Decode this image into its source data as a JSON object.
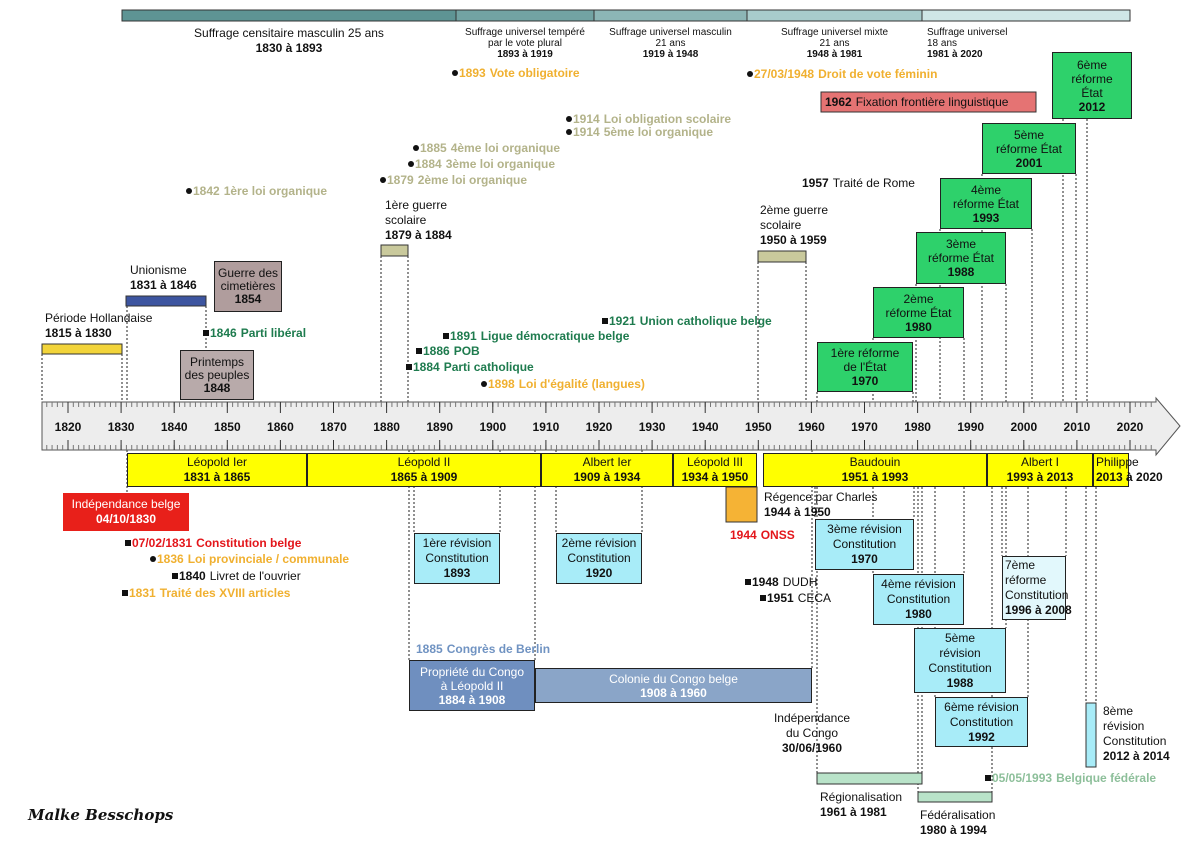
{
  "suffrage": [
    {
      "lines": [
        "Suffrage censitaire masculin 25 ans"
      ],
      "date": "1830 à 1893"
    },
    {
      "lines": [
        "Suffrage universel tempéré",
        "par le vote plural"
      ],
      "date": "1893 à 1919"
    },
    {
      "lines": [
        "Suffrage universel masculin",
        "21 ans"
      ],
      "date": "1919 à 1948"
    },
    {
      "lines": [
        "Suffrage universel mixte",
        "21 ans"
      ],
      "date": "1948 à 1981"
    },
    {
      "lines": [
        "Suffrage universel",
        "18 ans"
      ],
      "date": "1981 à 2020"
    }
  ],
  "events": [
    {
      "date": "1893",
      "text": "Vote obligatoire"
    },
    {
      "date": "27/03/1948",
      "text": "Droit de vote féminin"
    },
    {
      "date": "1962",
      "text": "Fixation frontière linguistique"
    },
    {
      "date": "1914",
      "text": "Loi obligation scolaire"
    },
    {
      "date": "1914",
      "text": "5ème loi organique"
    },
    {
      "date": "1885",
      "text": "4ème loi organique"
    },
    {
      "date": "1884",
      "text": "3ème loi organique"
    },
    {
      "date": "1879",
      "text": "2ème loi organique"
    },
    {
      "date": "1842",
      "text": "1ère loi organique"
    },
    {
      "date": "1957",
      "text": "Traité de Rome"
    },
    {
      "date": "1846",
      "text": "Parti libéral"
    },
    {
      "date": "1891",
      "text": "Ligue démocratique belge"
    },
    {
      "date": "1921",
      "text": "Union catholique belge"
    },
    {
      "date": "1886",
      "text": "POB"
    },
    {
      "date": "1884",
      "text": "Parti catholique"
    },
    {
      "date": "1898",
      "text": "Loi d'égalité (langues)"
    },
    {
      "date": "07/02/1831",
      "text": "Constitution belge"
    },
    {
      "date": "1836",
      "text": "Loi provinciale / communale"
    },
    {
      "date": "1840",
      "text": "Livret de l'ouvrier"
    },
    {
      "date": "1831",
      "text": "Traité des XVIII articles"
    },
    {
      "date": "1944",
      "text": "ONSS"
    },
    {
      "date": "1948",
      "text": "DUDH"
    },
    {
      "date": "1951",
      "text": "CECA"
    },
    {
      "date": "1885",
      "text": "Congrès de Berlin"
    },
    {
      "date": "05/05/1993",
      "text": "Belgique fédérale"
    }
  ],
  "periods": [
    {
      "lines": [
        "Période Hollandaise"
      ],
      "date": "1815 à 1830"
    },
    {
      "lines": [
        "Unionisme"
      ],
      "date": "1831 à 1846"
    },
    {
      "lines": [
        "Guerre des",
        "cimetières"
      ],
      "date": "1854"
    },
    {
      "lines": [
        "Printemps",
        "des peuples"
      ],
      "date": "1848"
    },
    {
      "lines": [
        "1ère guerre",
        "scolaire"
      ],
      "date": "1879 à 1884"
    },
    {
      "lines": [
        "2ème guerre",
        "scolaire"
      ],
      "date": "1950 à 1959"
    }
  ],
  "reforms": [
    {
      "lines": [
        "1ère réforme",
        "de l'État"
      ],
      "date": "1970"
    },
    {
      "lines": [
        "2ème",
        "réforme État"
      ],
      "date": "1980"
    },
    {
      "lines": [
        "3ème",
        "réforme État"
      ],
      "date": "1988"
    },
    {
      "lines": [
        "4ème",
        "réforme État"
      ],
      "date": "1993"
    },
    {
      "lines": [
        "5ème",
        "réforme État"
      ],
      "date": "2001"
    },
    {
      "lines": [
        "6ème",
        "réforme",
        "État"
      ],
      "date": "2012"
    }
  ],
  "axis": {
    "ticks": [
      1820,
      1830,
      1840,
      1850,
      1860,
      1870,
      1880,
      1890,
      1900,
      1910,
      1920,
      1930,
      1940,
      1950,
      1960,
      1970,
      1980,
      1990,
      2000,
      2010,
      2020
    ]
  },
  "reigns": [
    {
      "lines": [
        "Léopold Ier"
      ],
      "date": "1831 à 1865"
    },
    {
      "lines": [
        "Léopold II"
      ],
      "date": "1865 à 1909"
    },
    {
      "lines": [
        "Albert Ier"
      ],
      "date": "1909 à 1934"
    },
    {
      "lines": [
        "Léopold III"
      ],
      "date": "1934 à 1950"
    },
    {
      "lines": [
        "Baudouin"
      ],
      "date": "1951 à 1993"
    },
    {
      "lines": [
        "Albert I"
      ],
      "date": "1993 à 2013"
    },
    {
      "lines": [
        "Philippe"
      ],
      "date": "2013 à 2020"
    }
  ],
  "revisions": [
    {
      "lines": [
        "1ère révision",
        "Constitution"
      ],
      "date": "1893"
    },
    {
      "lines": [
        "2ème révision",
        "Constitution"
      ],
      "date": "1920"
    },
    {
      "lines": [
        "3ème révision",
        "Constitution"
      ],
      "date": "1970"
    },
    {
      "lines": [
        "4ème révision",
        "Constitution"
      ],
      "date": "1980"
    },
    {
      "lines": [
        "5ème",
        "révision",
        "Constitution"
      ],
      "date": "1988"
    },
    {
      "lines": [
        "6ème révision",
        "Constitution"
      ],
      "date": "1992"
    },
    {
      "lines": [
        "7ème",
        "réforme",
        "Constitution"
      ],
      "date": "1996 à 2008"
    },
    {
      "lines": [
        "8ème",
        "révision",
        "Constitution"
      ],
      "date": "2012 à 2014"
    }
  ],
  "other": [
    {
      "lines": [
        "Indépendance belge"
      ],
      "date": "04/10/1830"
    },
    {
      "lines": [
        "Régence par Charles"
      ],
      "date": "1944 à 1950"
    },
    {
      "lines": [
        "Propriété du Congo",
        "à Léopold II"
      ],
      "date": "1884 à 1908"
    },
    {
      "lines": [
        "Colonie du Congo belge"
      ],
      "date": "1908 à 1960"
    },
    {
      "lines": [
        "Indépendance",
        "du Congo"
      ],
      "date": "30/06/1960"
    },
    {
      "lines": [
        "Régionalisation"
      ],
      "date": "1961 à 1981"
    },
    {
      "lines": [
        "Fédéralisation"
      ],
      "date": "1980 à 1994"
    }
  ],
  "signature": "Malke Besschops"
}
